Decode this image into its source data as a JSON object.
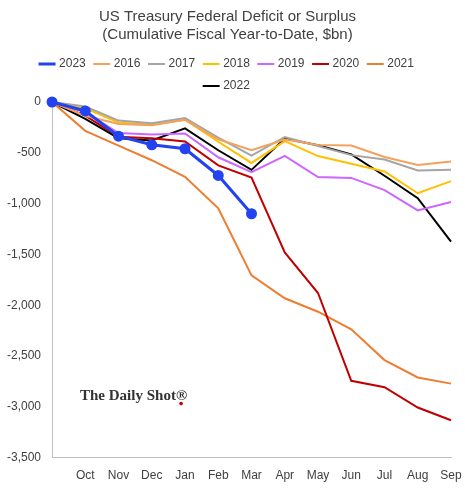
{
  "chart_data": {
    "type": "line",
    "title": [
      "US Treasury Federal Deficit or Surplus",
      "(Cumulative Fiscal Year-to-Date, $bn)"
    ],
    "categories": [
      null,
      "Oct",
      "Nov",
      "Dec",
      "Jan",
      "Feb",
      "Mar",
      "Apr",
      "May",
      "Jun",
      "Jul",
      "Aug",
      "Sep"
    ],
    "series": [
      {
        "name": "2016",
        "color": "#f4a15d",
        "marker": "none",
        "values": [
          0,
          -136,
          -216,
          -230,
          -175,
          -367,
          -475,
          -370,
          -422,
          -428,
          -541,
          -620,
          -585
        ]
      },
      {
        "name": "2017",
        "color": "#a5a5a5",
        "marker": "none",
        "values": [
          0,
          -45,
          -183,
          -210,
          -158,
          -350,
          -527,
          -344,
          -433,
          -523,
          -566,
          -674,
          -666
        ]
      },
      {
        "name": "2018",
        "color": "#ffc000",
        "marker": "none",
        "values": [
          0,
          -63,
          -201,
          -224,
          -175,
          -391,
          -600,
          -385,
          -532,
          -607,
          -684,
          -898,
          -779
        ]
      },
      {
        "name": "2019",
        "color": "#cc66ff",
        "marker": "none",
        "values": [
          0,
          -100,
          -305,
          -319,
          -310,
          -544,
          -691,
          -531,
          -739,
          -747,
          -867,
          -1067,
          -984
        ]
      },
      {
        "name": "2020",
        "color": "#c00000",
        "marker": "none",
        "values": [
          0,
          -134,
          -343,
          -357,
          -389,
          -624,
          -743,
          -1481,
          -1880,
          -2744,
          -2807,
          -3007,
          -3132
        ]
      },
      {
        "name": "2021",
        "color": "#ed7d31",
        "marker": "none",
        "values": [
          0,
          -284,
          -429,
          -573,
          -736,
          -1047,
          -1706,
          -1932,
          -2064,
          -2238,
          -2540,
          -2711,
          -2772
        ]
      },
      {
        "name": "2022",
        "color": "#000000",
        "marker": "none",
        "values": [
          0,
          -165,
          -356,
          -378,
          -259,
          -475,
          -668,
          -360,
          -426,
          -515,
          -726,
          -946,
          -1375
        ]
      },
      {
        "name": "2023",
        "color": "#2342f0",
        "marker": "circle",
        "values": [
          0,
          -88,
          -336,
          -421,
          -460,
          -723,
          -1100,
          null,
          null,
          null,
          null,
          null,
          null
        ]
      }
    ],
    "ylim": [
      -3500,
      0
    ],
    "yticks": [
      {
        "value": -3500,
        "label": "-3,500"
      },
      {
        "value": -3000,
        "label": "-3,000"
      },
      {
        "value": -2500,
        "label": "-2,500"
      },
      {
        "value": -2000,
        "label": "-2,000"
      },
      {
        "value": -1500,
        "label": "-1,500"
      },
      {
        "value": -1000,
        "label": "-1,000"
      },
      -500,
      0
    ],
    "grid": false,
    "legend": "top",
    "annotation": "The Daily Shot®"
  }
}
